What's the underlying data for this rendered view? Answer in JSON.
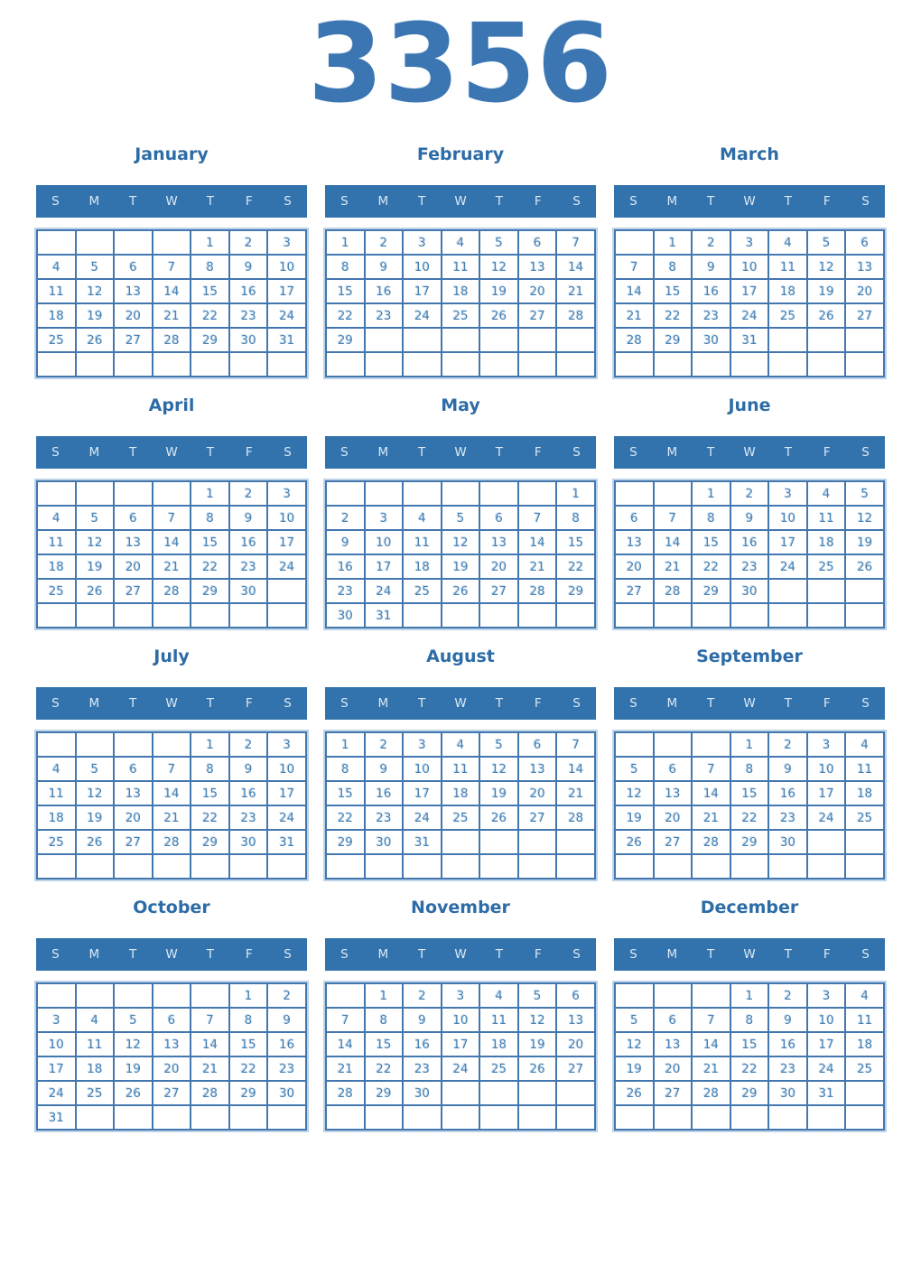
{
  "year": "3356",
  "weekday_headers": [
    "S",
    "M",
    "T",
    "W",
    "T",
    "F",
    "S"
  ],
  "colors": {
    "title": "#3b76b2",
    "month_title": "#2d6ca6",
    "header_bg": "#3273ad",
    "header_text": "#dce8f4",
    "grid_border": "#4377b0",
    "day_number": "#4682b4"
  },
  "months": [
    {
      "name": "January",
      "weeks": [
        [
          "",
          "",
          "",
          "",
          "1",
          "2",
          "3"
        ],
        [
          "4",
          "5",
          "6",
          "7",
          "8",
          "9",
          "10"
        ],
        [
          "11",
          "12",
          "13",
          "14",
          "15",
          "16",
          "17"
        ],
        [
          "18",
          "19",
          "20",
          "21",
          "22",
          "23",
          "24"
        ],
        [
          "25",
          "26",
          "27",
          "28",
          "29",
          "30",
          "31"
        ],
        [
          "",
          "",
          "",
          "",
          "",
          "",
          ""
        ]
      ]
    },
    {
      "name": "February",
      "weeks": [
        [
          "1",
          "2",
          "3",
          "4",
          "5",
          "6",
          "7"
        ],
        [
          "8",
          "9",
          "10",
          "11",
          "12",
          "13",
          "14"
        ],
        [
          "15",
          "16",
          "17",
          "18",
          "19",
          "20",
          "21"
        ],
        [
          "22",
          "23",
          "24",
          "25",
          "26",
          "27",
          "28"
        ],
        [
          "29",
          "",
          "",
          "",
          "",
          "",
          ""
        ],
        [
          "",
          "",
          "",
          "",
          "",
          "",
          ""
        ]
      ]
    },
    {
      "name": "March",
      "weeks": [
        [
          "",
          "1",
          "2",
          "3",
          "4",
          "5",
          "6"
        ],
        [
          "7",
          "8",
          "9",
          "10",
          "11",
          "12",
          "13"
        ],
        [
          "14",
          "15",
          "16",
          "17",
          "18",
          "19",
          "20"
        ],
        [
          "21",
          "22",
          "23",
          "24",
          "25",
          "26",
          "27"
        ],
        [
          "28",
          "29",
          "30",
          "31",
          "",
          "",
          ""
        ],
        [
          "",
          "",
          "",
          "",
          "",
          "",
          ""
        ]
      ]
    },
    {
      "name": "April",
      "weeks": [
        [
          "",
          "",
          "",
          "",
          "1",
          "2",
          "3"
        ],
        [
          "4",
          "5",
          "6",
          "7",
          "8",
          "9",
          "10"
        ],
        [
          "11",
          "12",
          "13",
          "14",
          "15",
          "16",
          "17"
        ],
        [
          "18",
          "19",
          "20",
          "21",
          "22",
          "23",
          "24"
        ],
        [
          "25",
          "26",
          "27",
          "28",
          "29",
          "30",
          ""
        ],
        [
          "",
          "",
          "",
          "",
          "",
          "",
          ""
        ]
      ]
    },
    {
      "name": "May",
      "weeks": [
        [
          "",
          "",
          "",
          "",
          "",
          "",
          "1"
        ],
        [
          "2",
          "3",
          "4",
          "5",
          "6",
          "7",
          "8"
        ],
        [
          "9",
          "10",
          "11",
          "12",
          "13",
          "14",
          "15"
        ],
        [
          "16",
          "17",
          "18",
          "19",
          "20",
          "21",
          "22"
        ],
        [
          "23",
          "24",
          "25",
          "26",
          "27",
          "28",
          "29"
        ],
        [
          "30",
          "31",
          "",
          "",
          "",
          "",
          ""
        ]
      ]
    },
    {
      "name": "June",
      "weeks": [
        [
          "",
          "",
          "1",
          "2",
          "3",
          "4",
          "5"
        ],
        [
          "6",
          "7",
          "8",
          "9",
          "10",
          "11",
          "12"
        ],
        [
          "13",
          "14",
          "15",
          "16",
          "17",
          "18",
          "19"
        ],
        [
          "20",
          "21",
          "22",
          "23",
          "24",
          "25",
          "26"
        ],
        [
          "27",
          "28",
          "29",
          "30",
          "",
          "",
          ""
        ],
        [
          "",
          "",
          "",
          "",
          "",
          "",
          ""
        ]
      ]
    },
    {
      "name": "July",
      "weeks": [
        [
          "",
          "",
          "",
          "",
          "1",
          "2",
          "3"
        ],
        [
          "4",
          "5",
          "6",
          "7",
          "8",
          "9",
          "10"
        ],
        [
          "11",
          "12",
          "13",
          "14",
          "15",
          "16",
          "17"
        ],
        [
          "18",
          "19",
          "20",
          "21",
          "22",
          "23",
          "24"
        ],
        [
          "25",
          "26",
          "27",
          "28",
          "29",
          "30",
          "31"
        ],
        [
          "",
          "",
          "",
          "",
          "",
          "",
          ""
        ]
      ]
    },
    {
      "name": "August",
      "weeks": [
        [
          "1",
          "2",
          "3",
          "4",
          "5",
          "6",
          "7"
        ],
        [
          "8",
          "9",
          "10",
          "11",
          "12",
          "13",
          "14"
        ],
        [
          "15",
          "16",
          "17",
          "18",
          "19",
          "20",
          "21"
        ],
        [
          "22",
          "23",
          "24",
          "25",
          "26",
          "27",
          "28"
        ],
        [
          "29",
          "30",
          "31",
          "",
          "",
          "",
          ""
        ],
        [
          "",
          "",
          "",
          "",
          "",
          "",
          ""
        ]
      ]
    },
    {
      "name": "September",
      "weeks": [
        [
          "",
          "",
          "",
          "1",
          "2",
          "3",
          "4"
        ],
        [
          "5",
          "6",
          "7",
          "8",
          "9",
          "10",
          "11"
        ],
        [
          "12",
          "13",
          "14",
          "15",
          "16",
          "17",
          "18"
        ],
        [
          "19",
          "20",
          "21",
          "22",
          "23",
          "24",
          "25"
        ],
        [
          "26",
          "27",
          "28",
          "29",
          "30",
          "",
          ""
        ],
        [
          "",
          "",
          "",
          "",
          "",
          "",
          ""
        ]
      ]
    },
    {
      "name": "October",
      "weeks": [
        [
          "",
          "",
          "",
          "",
          "",
          "1",
          "2"
        ],
        [
          "3",
          "4",
          "5",
          "6",
          "7",
          "8",
          "9"
        ],
        [
          "10",
          "11",
          "12",
          "13",
          "14",
          "15",
          "16"
        ],
        [
          "17",
          "18",
          "19",
          "20",
          "21",
          "22",
          "23"
        ],
        [
          "24",
          "25",
          "26",
          "27",
          "28",
          "29",
          "30"
        ],
        [
          "31",
          "",
          "",
          "",
          "",
          "",
          ""
        ]
      ]
    },
    {
      "name": "November",
      "weeks": [
        [
          "",
          "1",
          "2",
          "3",
          "4",
          "5",
          "6"
        ],
        [
          "7",
          "8",
          "9",
          "10",
          "11",
          "12",
          "13"
        ],
        [
          "14",
          "15",
          "16",
          "17",
          "18",
          "19",
          "20"
        ],
        [
          "21",
          "22",
          "23",
          "24",
          "25",
          "26",
          "27"
        ],
        [
          "28",
          "29",
          "30",
          "",
          "",
          "",
          ""
        ],
        [
          "",
          "",
          "",
          "",
          "",
          "",
          ""
        ]
      ]
    },
    {
      "name": "December",
      "weeks": [
        [
          "",
          "",
          "",
          "1",
          "2",
          "3",
          "4"
        ],
        [
          "5",
          "6",
          "7",
          "8",
          "9",
          "10",
          "11"
        ],
        [
          "12",
          "13",
          "14",
          "15",
          "16",
          "17",
          "18"
        ],
        [
          "19",
          "20",
          "21",
          "22",
          "23",
          "24",
          "25"
        ],
        [
          "26",
          "27",
          "28",
          "29",
          "30",
          "31",
          ""
        ],
        [
          "",
          "",
          "",
          "",
          "",
          "",
          ""
        ]
      ]
    }
  ]
}
